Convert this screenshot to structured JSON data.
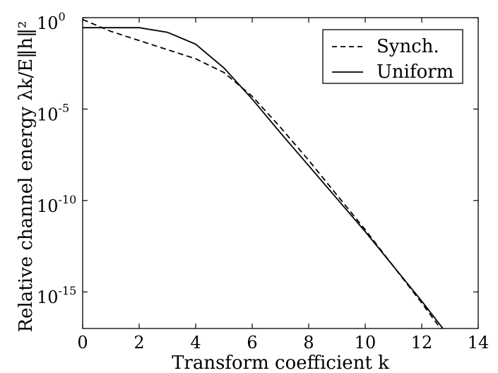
{
  "chart_data": {
    "type": "line",
    "xlabel": "Transform coefficient k",
    "ylabel": "Relative channel energy λk/E‖h‖²",
    "xlim": [
      0,
      14
    ],
    "ylim_log10": [
      -17,
      0
    ],
    "yscale": "log",
    "x_ticks": [
      "0",
      "2",
      "4",
      "6",
      "8",
      "10",
      "12",
      "14"
    ],
    "y_ticks": [
      {
        "base": "10",
        "exp": "0",
        "value": 0
      },
      {
        "base": "10",
        "exp": "-5",
        "value": -5
      },
      {
        "base": "10",
        "exp": "-10",
        "value": -10
      },
      {
        "base": "10",
        "exp": "-15",
        "value": -15
      }
    ],
    "grid": false,
    "legend_position": "top-right",
    "x": [
      0,
      1,
      2,
      3,
      4,
      5,
      6,
      7,
      8,
      9,
      10,
      11,
      12,
      13,
      14
    ],
    "series": [
      {
        "name": "Synch.",
        "style": "dashed",
        "log10_values": [
          -0.1,
          -0.75,
          -1.25,
          -1.75,
          -2.25,
          -3.0,
          -4.3,
          -6.0,
          -7.8,
          -9.7,
          -11.6,
          -13.6,
          -15.6,
          -17.7,
          -19.7
        ]
      },
      {
        "name": "Uniform",
        "style": "solid",
        "log10_values": [
          -0.55,
          -0.55,
          -0.55,
          -0.8,
          -1.45,
          -2.75,
          -4.45,
          -6.3,
          -8.1,
          -9.9,
          -11.7,
          -13.6,
          -15.5,
          -17.5,
          -19.4
        ]
      }
    ]
  }
}
